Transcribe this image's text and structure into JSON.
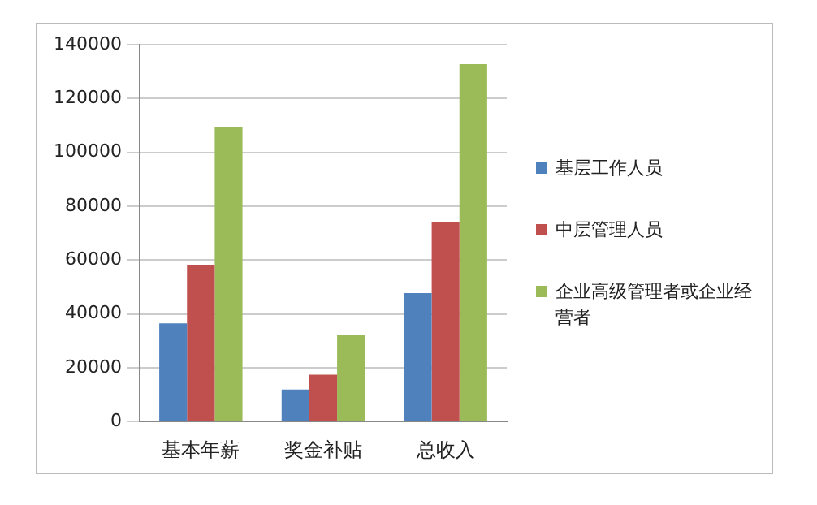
{
  "chart_data": {
    "type": "bar",
    "categories": [
      "基本年薪",
      "奖金补贴",
      "总收入"
    ],
    "series": [
      {
        "name": "基层工作人员",
        "color": "#4f81bd",
        "values": [
          36500,
          11900,
          47700
        ]
      },
      {
        "name": "中层管理人员",
        "color": "#c0504d",
        "values": [
          58100,
          17400,
          74200
        ]
      },
      {
        "name": "企业高级管理者或企业经营者",
        "color": "#9bbb59",
        "values": [
          109500,
          32200,
          132800
        ]
      }
    ],
    "ylim": [
      0,
      140000
    ],
    "yticks": [
      0,
      20000,
      40000,
      60000,
      80000,
      100000,
      120000,
      140000
    ],
    "grid": "y",
    "legend": "right"
  }
}
